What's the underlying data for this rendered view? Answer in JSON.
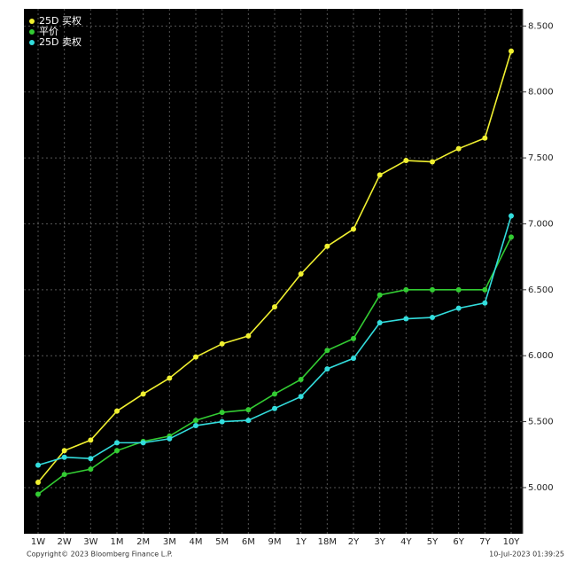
{
  "chart_data": {
    "type": "line",
    "categories": [
      "1W",
      "2W",
      "3W",
      "1M",
      "2M",
      "3M",
      "4M",
      "5M",
      "6M",
      "9M",
      "1Y",
      "18M",
      "2Y",
      "3Y",
      "4Y",
      "5Y",
      "6Y",
      "7Y",
      "10Y"
    ],
    "series": [
      {
        "name": "25D 买权",
        "color": "#f0f030",
        "values": [
          5.04,
          5.28,
          5.36,
          5.58,
          5.71,
          5.83,
          5.99,
          6.09,
          6.15,
          6.37,
          6.62,
          6.83,
          6.96,
          7.37,
          7.48,
          7.47,
          7.57,
          7.65,
          8.31
        ]
      },
      {
        "name": "平价",
        "color": "#33cc33",
        "values": [
          4.95,
          5.1,
          5.14,
          5.28,
          5.35,
          5.39,
          5.51,
          5.57,
          5.59,
          5.71,
          5.82,
          6.04,
          6.13,
          6.46,
          6.5,
          6.5,
          6.5,
          6.5,
          6.9
        ]
      },
      {
        "name": "25D 卖权",
        "color": "#33dddd",
        "values": [
          5.17,
          5.23,
          5.22,
          5.34,
          5.34,
          5.37,
          5.47,
          5.5,
          5.51,
          5.6,
          5.69,
          5.9,
          5.98,
          6.25,
          6.28,
          6.29,
          6.36,
          6.4,
          7.06
        ]
      }
    ],
    "ylim": [
      4.65,
      8.63
    ],
    "yticks": [
      {
        "value": 5,
        "label": "5.000"
      },
      {
        "value": 5.5,
        "label": "5.500"
      },
      {
        "value": 6,
        "label": "6.000"
      },
      {
        "value": 6.5,
        "label": "6.500"
      },
      {
        "value": 7,
        "label": "7.000"
      },
      {
        "value": 7.5,
        "label": "7.500"
      },
      {
        "value": 8,
        "label": "8.000"
      },
      {
        "value": 8.5,
        "label": "8.500"
      }
    ],
    "grid": true,
    "legend": "top-left",
    "footer_left": "Copyright© 2023 Bloomberg Finance L.P.",
    "footer_right": "10-Jul-2023 01:39:25"
  }
}
